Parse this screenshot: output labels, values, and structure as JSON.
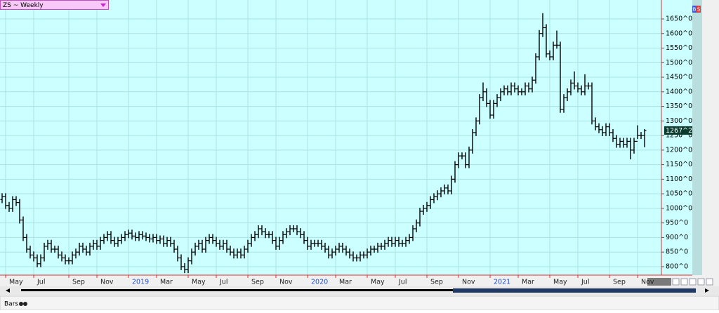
{
  "ui": {
    "symbol_selector": "ZS ~ Weekly",
    "buy_button": "B",
    "sell_button": "S",
    "footer_tab": "Bars"
  },
  "chart_data": {
    "type": "ohlc",
    "color": "#000000",
    "grid": true,
    "grid_color": "#a9e3e3",
    "background": "#ccffff",
    "year_label_color": "#1f4fd8",
    "categories": [
      null,
      "May",
      null,
      null,
      null,
      null,
      null,
      null,
      null,
      "Jul",
      null,
      null,
      null,
      null,
      null,
      null,
      null,
      null,
      null,
      "Sep",
      null,
      null,
      null,
      null,
      null,
      null,
      null,
      "Nov",
      null,
      null,
      null,
      null,
      null,
      null,
      null,
      null,
      "2019",
      null,
      null,
      null,
      null,
      null,
      null,
      null,
      "Mar",
      null,
      null,
      null,
      null,
      null,
      null,
      null,
      null,
      "May",
      null,
      null,
      null,
      null,
      null,
      null,
      null,
      "Jul",
      null,
      null,
      null,
      null,
      null,
      null,
      null,
      null,
      "Sep",
      null,
      null,
      null,
      null,
      null,
      null,
      null,
      "Nov",
      null,
      null,
      null,
      null,
      null,
      null,
      null,
      null,
      "2020",
      null,
      null,
      null,
      null,
      null,
      null,
      null,
      "Mar",
      null,
      null,
      null,
      null,
      null,
      null,
      null,
      null,
      "May",
      null,
      null,
      null,
      null,
      null,
      null,
      null,
      "Jul",
      null,
      null,
      null,
      null,
      null,
      null,
      null,
      null,
      "Sep",
      null,
      null,
      null,
      null,
      null,
      null,
      null,
      null,
      "Nov",
      null,
      null,
      null,
      null,
      null,
      null,
      null,
      null,
      "2021",
      null,
      null,
      null,
      null,
      null,
      null,
      null,
      "Mar",
      null,
      null,
      null,
      null,
      null,
      null,
      null,
      null,
      "May",
      null,
      null,
      null,
      null,
      null,
      null,
      null,
      "Jul",
      null,
      null,
      null,
      null,
      null,
      null,
      null,
      null,
      "Sep",
      null,
      null,
      null,
      null,
      null,
      null,
      null,
      "Nov",
      null,
      null
    ],
    "open": [
      1030,
      1040,
      1010,
      1000,
      1030,
      1020,
      960,
      900,
      860,
      840,
      830,
      810,
      830,
      870,
      880,
      860,
      860,
      840,
      830,
      820,
      820,
      840,
      850,
      870,
      860,
      850,
      870,
      880,
      870,
      890,
      900,
      910,
      890,
      880,
      890,
      900,
      910,
      915,
      905,
      900,
      910,
      905,
      900,
      895,
      900,
      890,
      895,
      880,
      890,
      880,
      860,
      830,
      800,
      790,
      820,
      850,
      870,
      880,
      860,
      890,
      900,
      890,
      880,
      870,
      880,
      860,
      850,
      840,
      850,
      840,
      860,
      880,
      900,
      910,
      930,
      920,
      910,
      910,
      890,
      870,
      890,
      910,
      920,
      930,
      930,
      920,
      910,
      890,
      870,
      880,
      880,
      880,
      870,
      860,
      840,
      850,
      860,
      870,
      860,
      850,
      840,
      830,
      830,
      840,
      840,
      850,
      860,
      860,
      870,
      870,
      880,
      890,
      880,
      890,
      880,
      880,
      890,
      900,
      930,
      950,
      990,
      1000,
      1010,
      1030,
      1040,
      1050,
      1060,
      1070,
      1060,
      1100,
      1150,
      1180,
      1180,
      1150,
      1200,
      1260,
      1300,
      1380,
      1400,
      1360,
      1320,
      1360,
      1380,
      1400,
      1410,
      1400,
      1420,
      1410,
      1400,
      1400,
      1420,
      1410,
      1440,
      1520,
      1600,
      1620,
      1530,
      1520,
      1560,
      1560,
      1340,
      1380,
      1400,
      1430,
      1420,
      1410,
      1400,
      1420,
      1420,
      1300,
      1280,
      1270,
      1260,
      1280,
      1260,
      1240,
      1220,
      1230,
      1220,
      1230,
      1200,
      1230,
      1250,
      1250
    ],
    "high": [
      1052,
      1052,
      1022,
      1042,
      1042,
      1032,
      972,
      912,
      872,
      852,
      842,
      842,
      882,
      892,
      892,
      872,
      872,
      852,
      842,
      832,
      852,
      862,
      882,
      882,
      872,
      882,
      892,
      892,
      902,
      912,
      922,
      922,
      902,
      902,
      912,
      922,
      927,
      927,
      917,
      922,
      922,
      917,
      912,
      912,
      912,
      907,
      907,
      902,
      902,
      892,
      872,
      842,
      812,
      832,
      862,
      882,
      892,
      892,
      902,
      912,
      912,
      902,
      892,
      892,
      892,
      872,
      862,
      862,
      862,
      872,
      892,
      912,
      922,
      942,
      942,
      932,
      922,
      922,
      902,
      902,
      922,
      932,
      942,
      942,
      942,
      932,
      922,
      902,
      892,
      892,
      892,
      892,
      882,
      872,
      862,
      872,
      882,
      882,
      872,
      862,
      852,
      842,
      852,
      852,
      862,
      872,
      872,
      882,
      882,
      892,
      902,
      902,
      902,
      902,
      892,
      902,
      912,
      942,
      962,
      1002,
      1012,
      1022,
      1042,
      1052,
      1062,
      1072,
      1082,
      1082,
      1112,
      1162,
      1192,
      1192,
      1192,
      1212,
      1272,
      1312,
      1392,
      1432,
      1412,
      1372,
      1372,
      1392,
      1412,
      1422,
      1422,
      1432,
      1432,
      1422,
      1412,
      1432,
      1432,
      1452,
      1532,
      1612,
      1670,
      1632,
      1542,
      1572,
      1610,
      1572,
      1392,
      1412,
      1442,
      1470,
      1432,
      1422,
      1460,
      1432,
      1432,
      1312,
      1292,
      1282,
      1292,
      1292,
      1272,
      1252,
      1242,
      1242,
      1242,
      1242,
      1242,
      1285,
      1262,
      1272
    ],
    "low": [
      1018,
      998,
      988,
      988,
      1008,
      948,
      888,
      848,
      828,
      818,
      798,
      798,
      818,
      858,
      848,
      848,
      828,
      818,
      808,
      808,
      808,
      828,
      838,
      848,
      838,
      838,
      858,
      858,
      858,
      878,
      888,
      878,
      868,
      868,
      878,
      888,
      898,
      893,
      888,
      888,
      893,
      888,
      883,
      883,
      878,
      878,
      868,
      868,
      868,
      848,
      818,
      788,
      778,
      778,
      808,
      838,
      858,
      848,
      848,
      878,
      878,
      868,
      858,
      858,
      848,
      838,
      828,
      828,
      828,
      828,
      848,
      868,
      888,
      898,
      908,
      898,
      898,
      878,
      858,
      858,
      878,
      898,
      908,
      918,
      908,
      898,
      878,
      858,
      858,
      868,
      868,
      858,
      848,
      828,
      828,
      838,
      848,
      848,
      838,
      828,
      818,
      818,
      818,
      828,
      828,
      838,
      848,
      848,
      858,
      858,
      868,
      868,
      868,
      868,
      868,
      868,
      878,
      888,
      918,
      938,
      978,
      988,
      998,
      1018,
      1028,
      1038,
      1048,
      1048,
      1048,
      1088,
      1138,
      1168,
      1138,
      1138,
      1188,
      1248,
      1288,
      1368,
      1348,
      1308,
      1308,
      1348,
      1368,
      1388,
      1388,
      1388,
      1398,
      1388,
      1388,
      1388,
      1398,
      1398,
      1428,
      1508,
      1588,
      1518,
      1508,
      1508,
      1548,
      1328,
      1328,
      1368,
      1388,
      1408,
      1398,
      1388,
      1388,
      1408,
      1288,
      1268,
      1258,
      1248,
      1248,
      1248,
      1228,
      1208,
      1208,
      1208,
      1208,
      1168,
      1188,
      1238,
      1238,
      1210
    ],
    "close": [
      1040,
      1010,
      1000,
      1030,
      1020,
      960,
      900,
      860,
      840,
      830,
      810,
      830,
      870,
      880,
      860,
      860,
      840,
      830,
      820,
      820,
      840,
      850,
      870,
      860,
      850,
      870,
      880,
      870,
      890,
      900,
      910,
      890,
      880,
      890,
      900,
      910,
      915,
      905,
      900,
      910,
      905,
      900,
      895,
      900,
      890,
      895,
      880,
      890,
      880,
      860,
      830,
      800,
      790,
      820,
      850,
      870,
      880,
      860,
      890,
      900,
      890,
      880,
      870,
      880,
      860,
      850,
      840,
      850,
      840,
      860,
      880,
      900,
      910,
      930,
      920,
      910,
      910,
      890,
      870,
      890,
      910,
      920,
      930,
      930,
      920,
      910,
      890,
      870,
      880,
      880,
      880,
      870,
      860,
      840,
      850,
      860,
      870,
      860,
      850,
      840,
      830,
      830,
      840,
      840,
      850,
      860,
      860,
      870,
      870,
      880,
      890,
      880,
      890,
      880,
      880,
      890,
      900,
      930,
      950,
      990,
      1000,
      1010,
      1030,
      1040,
      1050,
      1060,
      1070,
      1060,
      1100,
      1150,
      1180,
      1180,
      1150,
      1200,
      1260,
      1300,
      1380,
      1400,
      1360,
      1320,
      1360,
      1380,
      1400,
      1410,
      1400,
      1420,
      1410,
      1400,
      1400,
      1420,
      1410,
      1440,
      1520,
      1600,
      1620,
      1530,
      1520,
      1560,
      1560,
      1340,
      1380,
      1400,
      1430,
      1420,
      1410,
      1400,
      1420,
      1420,
      1300,
      1280,
      1270,
      1260,
      1280,
      1260,
      1240,
      1220,
      1230,
      1220,
      1230,
      1200,
      1230,
      1250,
      1250,
      1267.25
    ],
    "ylim": [
      771,
      1715
    ],
    "yticks": [
      {
        "value": 800,
        "label": "800^0"
      },
      {
        "value": 850,
        "label": "850^0"
      },
      {
        "value": 900,
        "label": "900^0"
      },
      {
        "value": 950,
        "label": "950^0"
      },
      {
        "value": 1000,
        "label": "1000^0"
      },
      {
        "value": 1050,
        "label": "1050^0"
      },
      {
        "value": 1100,
        "label": "1100^0"
      },
      {
        "value": 1150,
        "label": "1150^0"
      },
      {
        "value": 1200,
        "label": "1200^0"
      },
      {
        "value": 1250,
        "label": "1250^0"
      },
      {
        "value": 1300,
        "label": "1300^0"
      },
      {
        "value": 1350,
        "label": "1350^0"
      },
      {
        "value": 1400,
        "label": "1400^0"
      },
      {
        "value": 1450,
        "label": "1450^0"
      },
      {
        "value": 1500,
        "label": "1500^0"
      },
      {
        "value": 1550,
        "label": "1550^0"
      },
      {
        "value": 1600,
        "label": "1600^0"
      },
      {
        "value": 1650,
        "label": "1650^0"
      }
    ],
    "last_price": {
      "value": 1267.25,
      "label": "1267^2"
    }
  }
}
